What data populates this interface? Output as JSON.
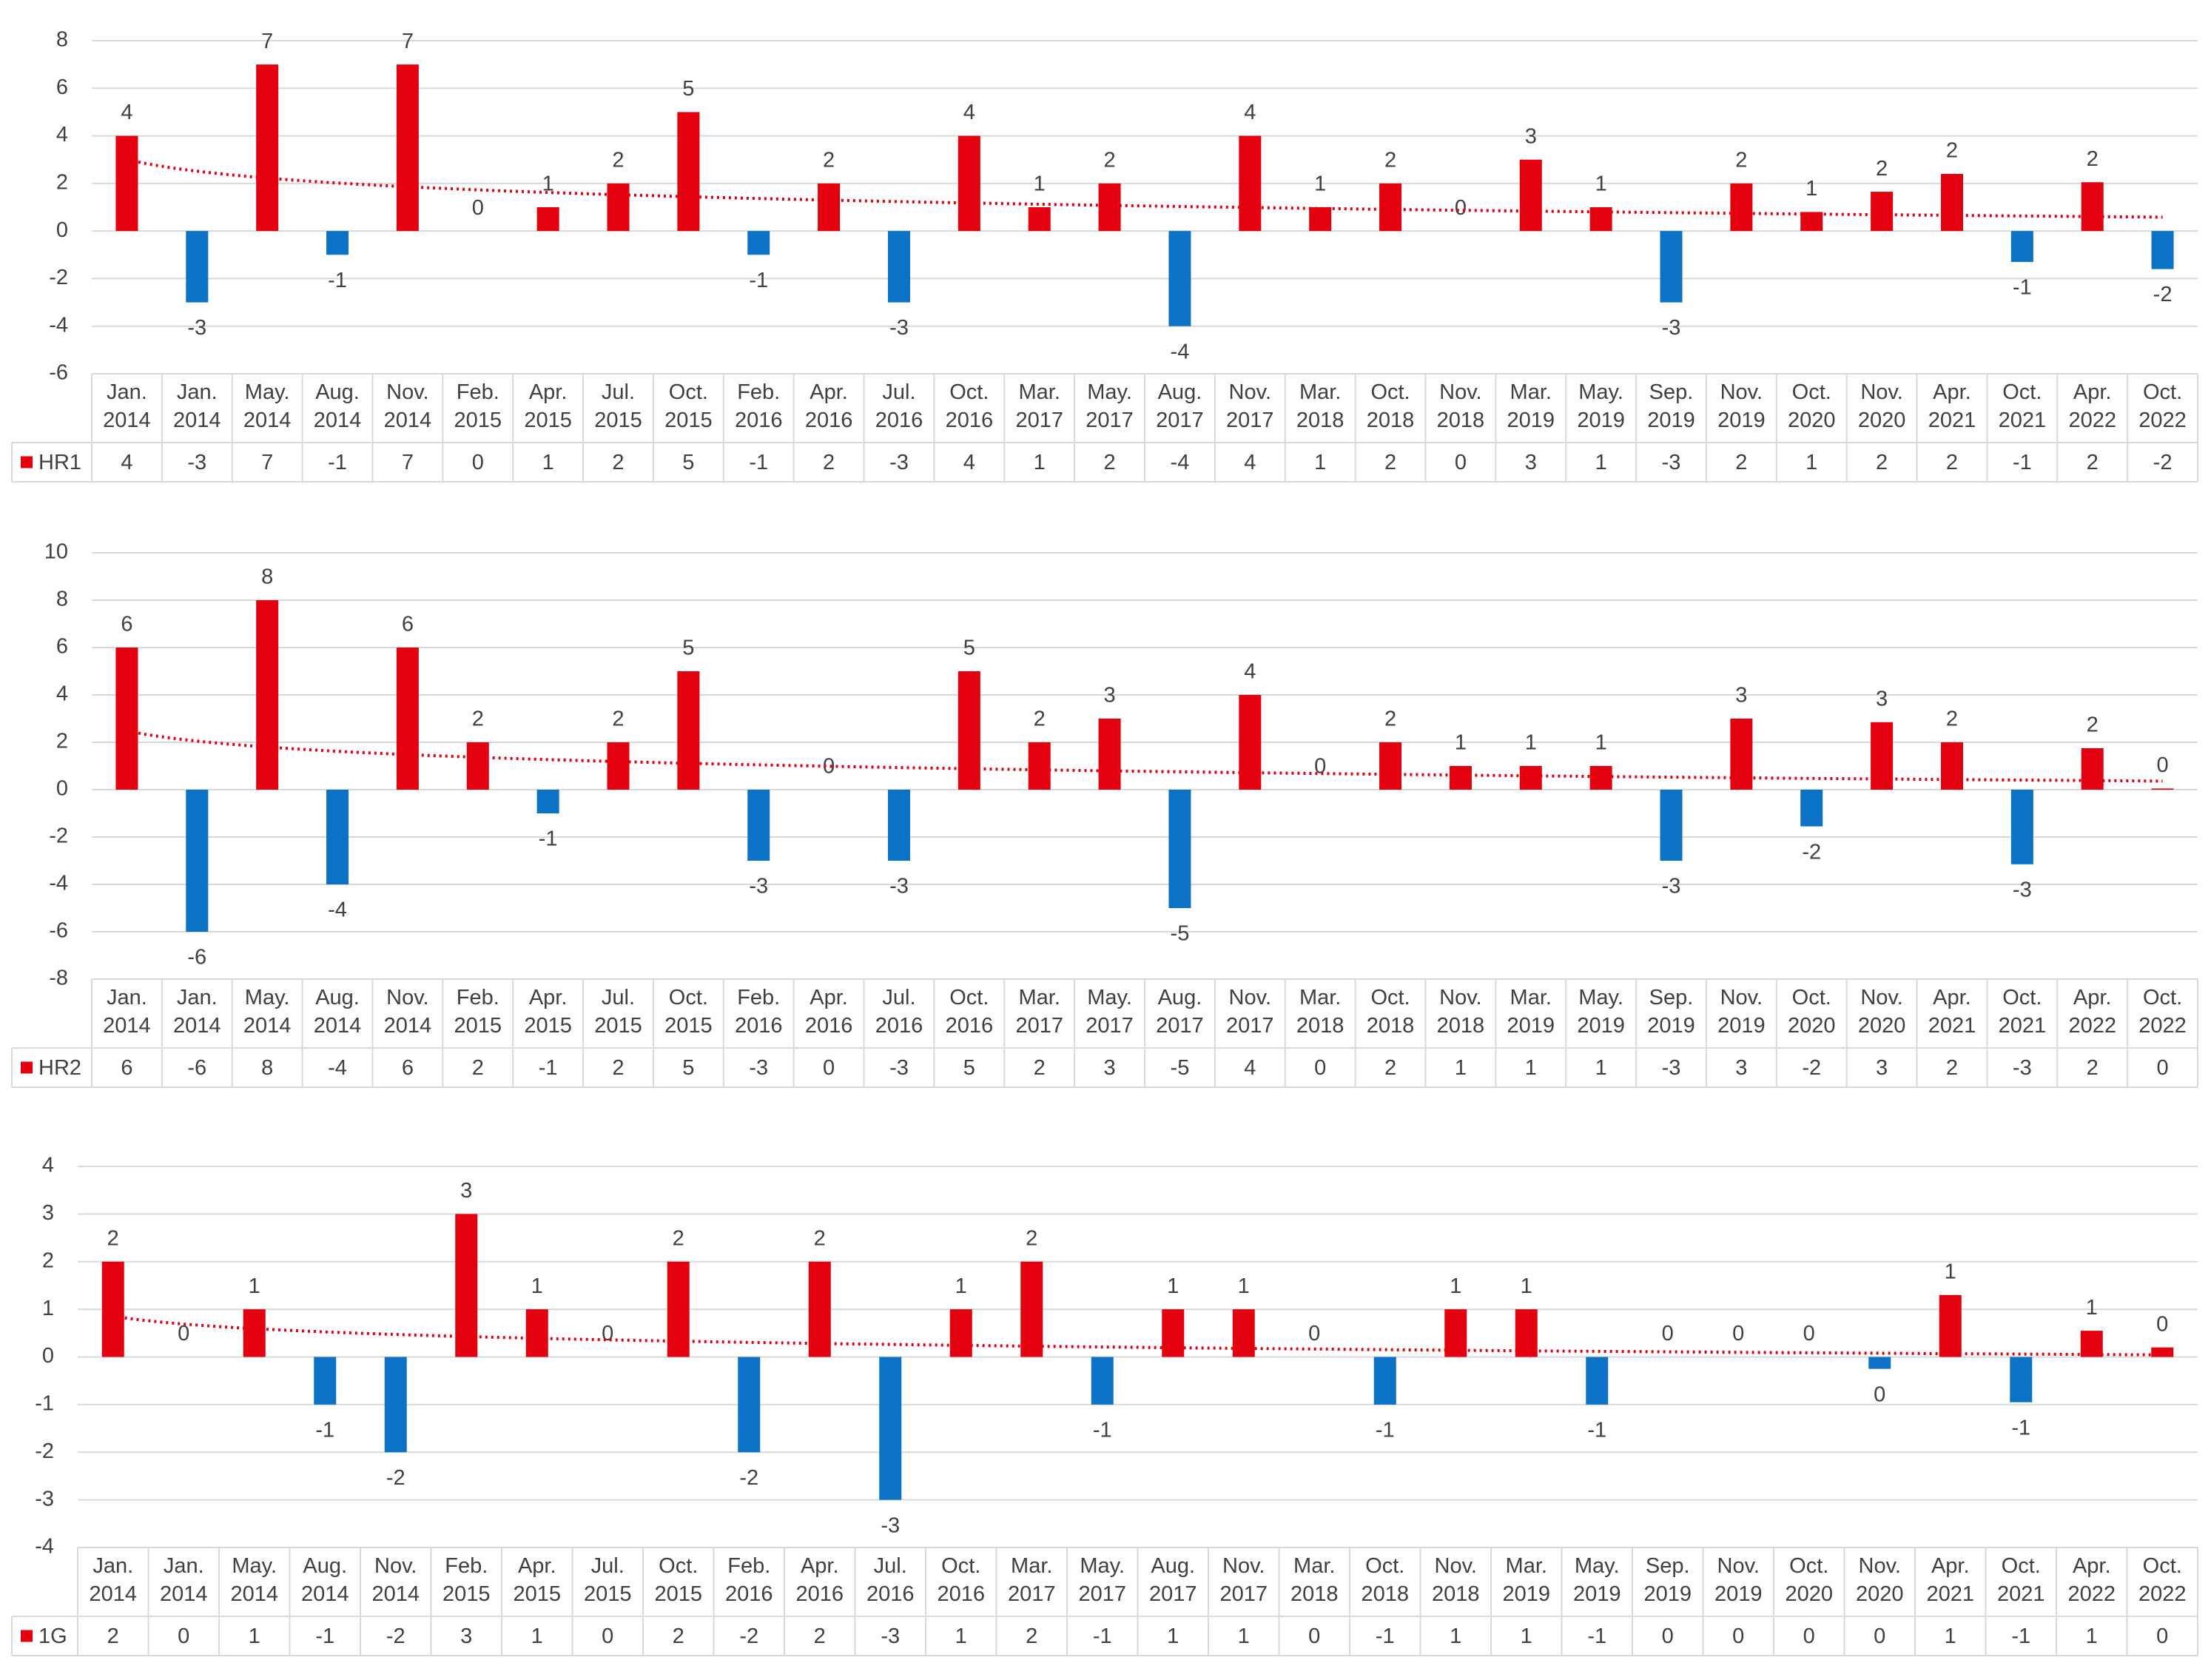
{
  "chart_data": [
    {
      "type": "bar",
      "ylim": [
        -6,
        8
      ],
      "yticks": [
        -6,
        -4,
        -2,
        0,
        2,
        4,
        6,
        8
      ],
      "grid": true,
      "trendline": "logarithmic",
      "data_table": true,
      "categories": [
        "Jan. 2014",
        "Jan. 2014",
        "May. 2014",
        "Aug. 2014",
        "Nov. 2014",
        "Feb. 2015",
        "Apr. 2015",
        "Jul. 2015",
        "Oct. 2015",
        "Feb. 2016",
        "Apr. 2016",
        "Jul. 2016",
        "Oct. 2016",
        "Mar. 2017",
        "May. 2017",
        "Aug. 2017",
        "Nov. 2017",
        "Mar. 2018",
        "Oct. 2018",
        "Nov. 2018",
        "Mar. 2019",
        "May. 2019",
        "Sep. 2019",
        "Nov. 2019",
        "Oct. 2020",
        "Nov. 2020",
        "Apr. 2021",
        "Oct. 2021",
        "Apr. 2022",
        "Oct. 2022"
      ],
      "series": [
        {
          "name": "HR1",
          "color": "#e3000f",
          "negative_color": "#0b72c5",
          "values": [
            4,
            -3,
            7,
            -1,
            7,
            0,
            1,
            2,
            5,
            -1,
            2,
            -3,
            4,
            1,
            2,
            -4,
            4,
            1,
            2,
            0,
            3,
            1,
            -3,
            2,
            0.8,
            1.65,
            2.4,
            -1.3,
            2.05,
            -1.6
          ],
          "value_labels": [
            "4",
            "-3",
            "7",
            "-1",
            "7",
            "0",
            "1",
            "2",
            "5",
            "-1",
            "2",
            "-3",
            "4",
            "1",
            "2",
            "-4",
            "4",
            "1",
            "2",
            "0",
            "3",
            "1",
            "-3",
            "2",
            "1",
            "2",
            "2",
            "-1",
            "2",
            "-2"
          ]
        }
      ]
    },
    {
      "type": "bar",
      "ylim": [
        -8,
        10
      ],
      "yticks": [
        -8,
        -6,
        -4,
        -2,
        0,
        2,
        4,
        6,
        8,
        10
      ],
      "grid": true,
      "trendline": "logarithmic",
      "data_table": true,
      "categories": [
        "Jan. 2014",
        "Jan. 2014",
        "May. 2014",
        "Aug. 2014",
        "Nov. 2014",
        "Feb. 2015",
        "Apr. 2015",
        "Jul. 2015",
        "Oct. 2015",
        "Feb. 2016",
        "Apr. 2016",
        "Jul. 2016",
        "Oct. 2016",
        "Mar. 2017",
        "May. 2017",
        "Aug. 2017",
        "Nov. 2017",
        "Mar. 2018",
        "Oct. 2018",
        "Nov. 2018",
        "Mar. 2019",
        "May. 2019",
        "Sep. 2019",
        "Nov. 2019",
        "Oct. 2020",
        "Nov. 2020",
        "Apr. 2021",
        "Oct. 2021",
        "Apr. 2022",
        "Oct. 2022"
      ],
      "series": [
        {
          "name": "HR2",
          "color": "#e3000f",
          "negative_color": "#0b72c5",
          "values": [
            6,
            -6,
            8,
            -4,
            6,
            2,
            -1,
            2,
            5,
            -3,
            0,
            -3,
            5,
            2,
            3,
            -5,
            4,
            0,
            2,
            1,
            1,
            1,
            -3,
            3,
            -1.55,
            2.85,
            2,
            -3.15,
            1.75,
            0.05
          ],
          "value_labels": [
            "6",
            "-6",
            "8",
            "-4",
            "6",
            "2",
            "-1",
            "2",
            "5",
            "-3",
            "0",
            "-3",
            "5",
            "2",
            "3",
            "-5",
            "4",
            "0",
            "2",
            "1",
            "1",
            "1",
            "-3",
            "3",
            "-2",
            "3",
            "2",
            "-3",
            "2",
            "0"
          ]
        }
      ]
    },
    {
      "type": "bar",
      "ylim": [
        -4,
        4
      ],
      "yticks": [
        -4,
        -3,
        -2,
        -1,
        0,
        1,
        2,
        3,
        4
      ],
      "grid": true,
      "trendline": "logarithmic",
      "data_table": true,
      "categories": [
        "Jan. 2014",
        "Jan. 2014",
        "May. 2014",
        "Aug. 2014",
        "Nov. 2014",
        "Feb. 2015",
        "Apr. 2015",
        "Jul. 2015",
        "Oct. 2015",
        "Feb. 2016",
        "Apr. 2016",
        "Jul. 2016",
        "Oct. 2016",
        "Mar. 2017",
        "May. 2017",
        "Aug. 2017",
        "Nov. 2017",
        "Mar. 2018",
        "Oct. 2018",
        "Nov. 2018",
        "Mar. 2019",
        "May. 2019",
        "Sep. 2019",
        "Nov. 2019",
        "Oct. 2020",
        "Nov. 2020",
        "Apr. 2021",
        "Oct. 2021",
        "Apr. 2022",
        "Oct. 2022"
      ],
      "series": [
        {
          "name": "1G",
          "color": "#e3000f",
          "negative_color": "#0b72c5",
          "values": [
            2,
            0,
            1,
            -1,
            -2,
            3,
            1,
            0,
            2,
            -2,
            2,
            -3,
            1,
            2,
            -1,
            1,
            1,
            0,
            -1,
            1,
            1,
            -1,
            0,
            0,
            0,
            -0.25,
            1.3,
            -0.95,
            0.55,
            0.2
          ],
          "value_labels": [
            "2",
            "0",
            "1",
            "-1",
            "-2",
            "3",
            "1",
            "0",
            "2",
            "-2",
            "2",
            "-3",
            "1",
            "2",
            "-1",
            "1",
            "1",
            "0",
            "-1",
            "1",
            "1",
            "-1",
            "0",
            "0",
            "0",
            "0",
            "1",
            "-1",
            "1",
            "0"
          ]
        }
      ]
    }
  ]
}
